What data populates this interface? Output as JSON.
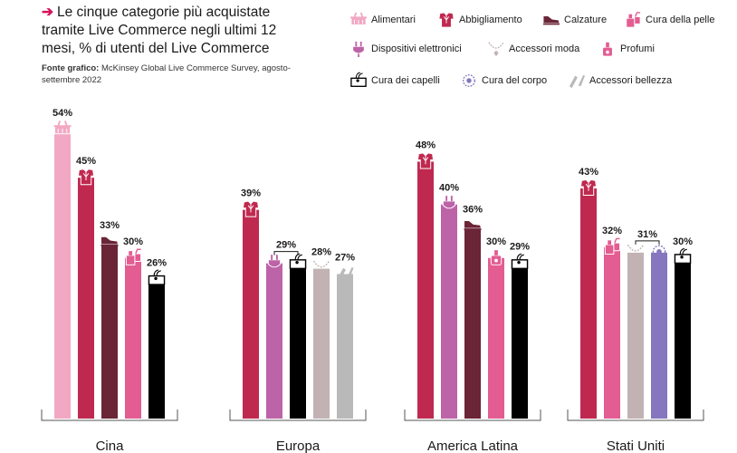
{
  "header": {
    "title": "Le cinque categorie più acquistate tramite Live Commerce negli ultimi 12 mesi, % di utenti del Live Commerce",
    "source_label": "Fonte grafico:",
    "source_text": "McKinsey Global Live Commerce Survey, agosto-settembre 2022"
  },
  "colors": {
    "Alimentari": "#f2a8c3",
    "Abbigliamento": "#c0294f",
    "Calzature": "#6a2537",
    "Cura della pelle": "#e35c92",
    "Dispositivi elettronici": "#bd63a8",
    "Accessori moda": "#c2b2b4",
    "Profumi": "#e35c92",
    "Cura dei capelli": "#000000",
    "Cura del corpo": "#8576bf",
    "Accessori bellezza": "#b9b9b9"
  },
  "legend": [
    {
      "label": "Alimentari",
      "icon": "basket-icon"
    },
    {
      "label": "Abbigliamento",
      "icon": "shirt-icon"
    },
    {
      "label": "Calzature",
      "icon": "shoe-icon"
    },
    {
      "label": "Cura della pelle",
      "icon": "lotion-icon"
    },
    {
      "label": "Dispositivi elettronici",
      "icon": "plug-icon"
    },
    {
      "label": "Accessori moda",
      "icon": "necklace-icon"
    },
    {
      "label": "Profumi",
      "icon": "perfume-icon"
    },
    {
      "label": "Cura dei capelli",
      "icon": "hair-icon"
    },
    {
      "label": "Cura del corpo",
      "icon": "body-care-icon"
    },
    {
      "label": "Accessori bellezza",
      "icon": "beauty-tools-icon"
    }
  ],
  "chart_data": {
    "type": "bar",
    "ylim": [
      0,
      54
    ],
    "grid": false,
    "groups": [
      {
        "region": "Cina",
        "bars": [
          {
            "category": "Alimentari",
            "value": 54,
            "label": "54%"
          },
          {
            "category": "Abbigliamento",
            "value": 45,
            "label": "45%"
          },
          {
            "category": "Calzature",
            "value": 33,
            "label": "33%"
          },
          {
            "category": "Cura della pelle",
            "value": 30,
            "label": "30%"
          },
          {
            "category": "Cura dei capelli",
            "value": 26,
            "label": "26%"
          }
        ]
      },
      {
        "region": "Europa",
        "bars": [
          {
            "category": "Abbigliamento",
            "value": 39,
            "label": "39%"
          },
          {
            "category": "Dispositivi elettronici",
            "value": 29,
            "label": ""
          },
          {
            "category": "Cura dei capelli",
            "value": 29,
            "label": ""
          },
          {
            "category": "Accessori moda",
            "value": 28,
            "label": "28%"
          },
          {
            "category": "Accessori bellezza",
            "value": 27,
            "label": "27%"
          }
        ],
        "shared_labels": [
          {
            "from": 1,
            "to": 2,
            "label": "29%"
          }
        ]
      },
      {
        "region": "America Latina",
        "bars": [
          {
            "category": "Abbigliamento",
            "value": 48,
            "label": "48%"
          },
          {
            "category": "Dispositivi elettronici",
            "value": 40,
            "label": "40%"
          },
          {
            "category": "Calzature",
            "value": 36,
            "label": "36%"
          },
          {
            "category": "Profumi",
            "value": 30,
            "label": "30%"
          },
          {
            "category": "Cura dei capelli",
            "value": 29,
            "label": "29%"
          }
        ]
      },
      {
        "region": "Stati Uniti",
        "bars": [
          {
            "category": "Abbigliamento",
            "value": 43,
            "label": "43%"
          },
          {
            "category": "Cura della pelle",
            "value": 32,
            "label": "32%"
          },
          {
            "category": "Accessori moda",
            "value": 31,
            "label": ""
          },
          {
            "category": "Cura del corpo",
            "value": 31,
            "label": ""
          },
          {
            "category": "Cura dei capelli",
            "value": 30,
            "label": "30%"
          }
        ],
        "shared_labels": [
          {
            "from": 2,
            "to": 3,
            "label": "31%"
          }
        ]
      }
    ]
  }
}
